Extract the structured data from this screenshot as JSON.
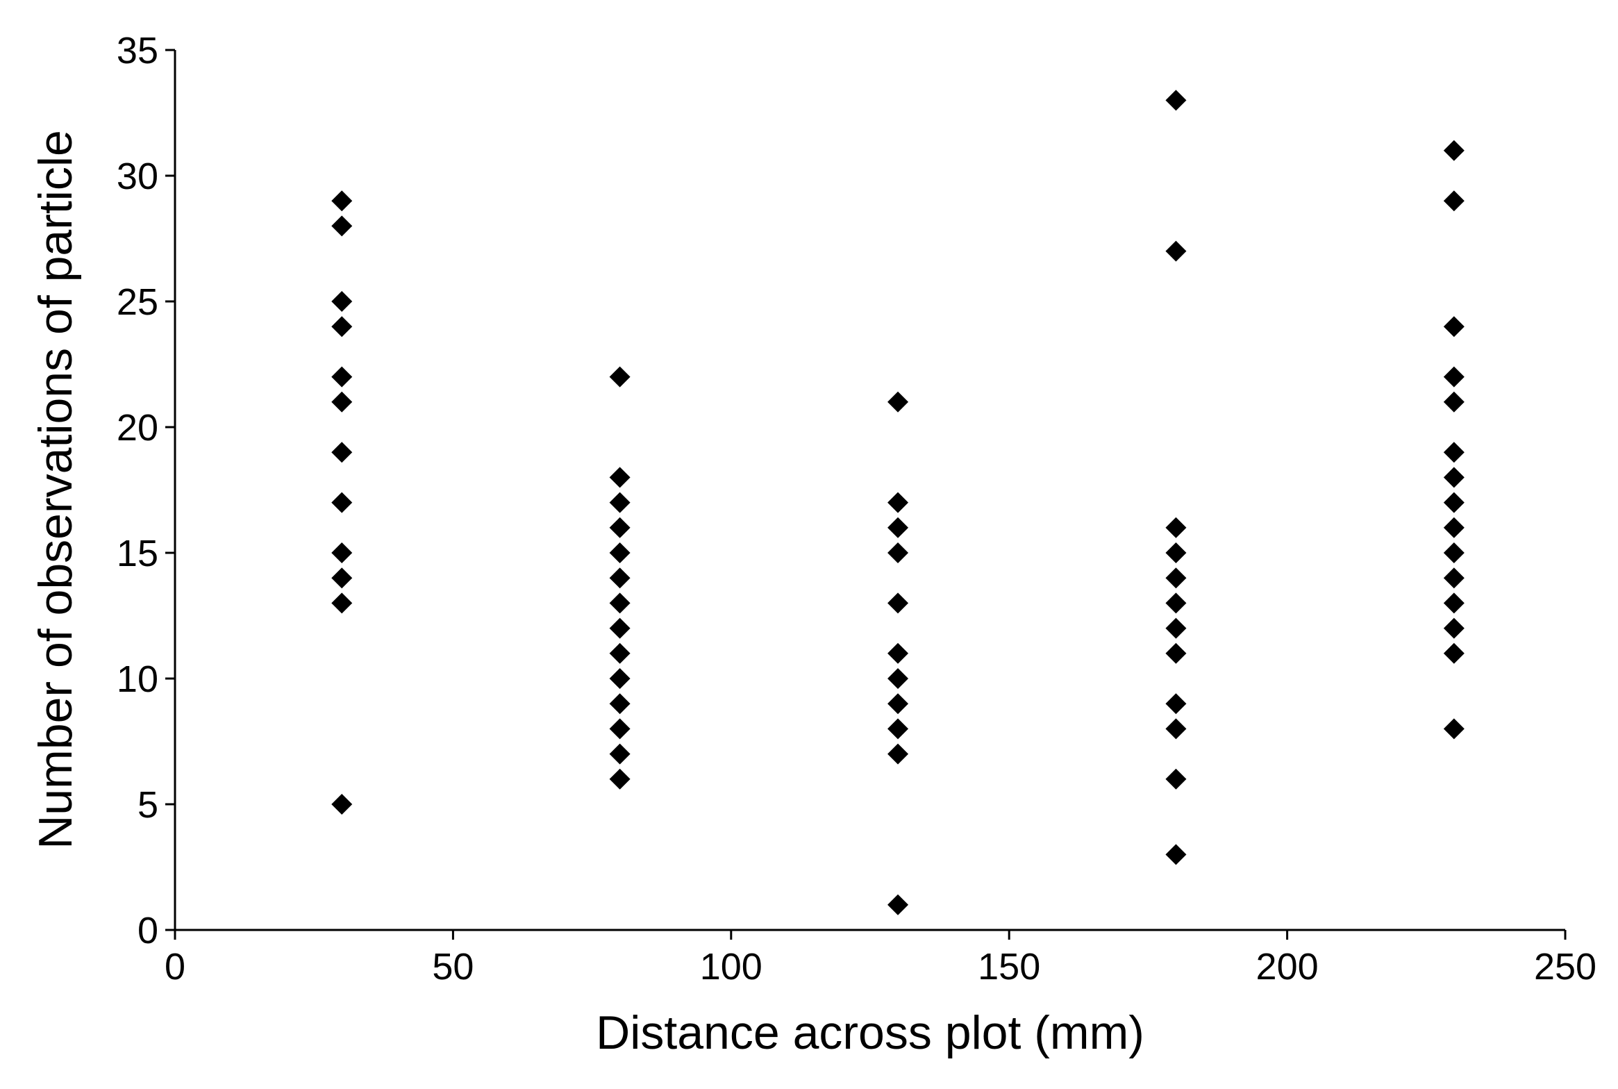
{
  "chart_data": {
    "type": "scatter",
    "title": "",
    "xlabel": "Distance across plot (mm)",
    "ylabel": "Number of observations of particle",
    "xlim": [
      0,
      250
    ],
    "ylim": [
      0,
      35
    ],
    "xticks": [
      0,
      50,
      100,
      150,
      200,
      250
    ],
    "yticks": [
      0,
      5,
      10,
      15,
      20,
      25,
      30,
      35
    ],
    "grid": false,
    "legend": "none",
    "marker": "diamond",
    "marker_color": "#000000",
    "points": [
      {
        "x": 30,
        "y": 29
      },
      {
        "x": 30,
        "y": 28
      },
      {
        "x": 30,
        "y": 25
      },
      {
        "x": 30,
        "y": 24
      },
      {
        "x": 30,
        "y": 22
      },
      {
        "x": 30,
        "y": 21
      },
      {
        "x": 30,
        "y": 19
      },
      {
        "x": 30,
        "y": 17
      },
      {
        "x": 30,
        "y": 15
      },
      {
        "x": 30,
        "y": 14
      },
      {
        "x": 30,
        "y": 13
      },
      {
        "x": 30,
        "y": 5
      },
      {
        "x": 80,
        "y": 22
      },
      {
        "x": 80,
        "y": 18
      },
      {
        "x": 80,
        "y": 17
      },
      {
        "x": 80,
        "y": 16
      },
      {
        "x": 80,
        "y": 15
      },
      {
        "x": 80,
        "y": 14
      },
      {
        "x": 80,
        "y": 13
      },
      {
        "x": 80,
        "y": 12
      },
      {
        "x": 80,
        "y": 11
      },
      {
        "x": 80,
        "y": 10
      },
      {
        "x": 80,
        "y": 9
      },
      {
        "x": 80,
        "y": 8
      },
      {
        "x": 80,
        "y": 7
      },
      {
        "x": 80,
        "y": 6
      },
      {
        "x": 130,
        "y": 21
      },
      {
        "x": 130,
        "y": 17
      },
      {
        "x": 130,
        "y": 16
      },
      {
        "x": 130,
        "y": 15
      },
      {
        "x": 130,
        "y": 13
      },
      {
        "x": 130,
        "y": 11
      },
      {
        "x": 130,
        "y": 10
      },
      {
        "x": 130,
        "y": 9
      },
      {
        "x": 130,
        "y": 8
      },
      {
        "x": 130,
        "y": 7
      },
      {
        "x": 130,
        "y": 1
      },
      {
        "x": 180,
        "y": 33
      },
      {
        "x": 180,
        "y": 27
      },
      {
        "x": 180,
        "y": 16
      },
      {
        "x": 180,
        "y": 15
      },
      {
        "x": 180,
        "y": 14
      },
      {
        "x": 180,
        "y": 13
      },
      {
        "x": 180,
        "y": 12
      },
      {
        "x": 180,
        "y": 11
      },
      {
        "x": 180,
        "y": 9
      },
      {
        "x": 180,
        "y": 8
      },
      {
        "x": 180,
        "y": 6
      },
      {
        "x": 180,
        "y": 3
      },
      {
        "x": 230,
        "y": 31
      },
      {
        "x": 230,
        "y": 29
      },
      {
        "x": 230,
        "y": 24
      },
      {
        "x": 230,
        "y": 22
      },
      {
        "x": 230,
        "y": 21
      },
      {
        "x": 230,
        "y": 19
      },
      {
        "x": 230,
        "y": 18
      },
      {
        "x": 230,
        "y": 17
      },
      {
        "x": 230,
        "y": 16
      },
      {
        "x": 230,
        "y": 15
      },
      {
        "x": 230,
        "y": 14
      },
      {
        "x": 230,
        "y": 13
      },
      {
        "x": 230,
        "y": 12
      },
      {
        "x": 230,
        "y": 11
      },
      {
        "x": 230,
        "y": 8
      }
    ]
  }
}
